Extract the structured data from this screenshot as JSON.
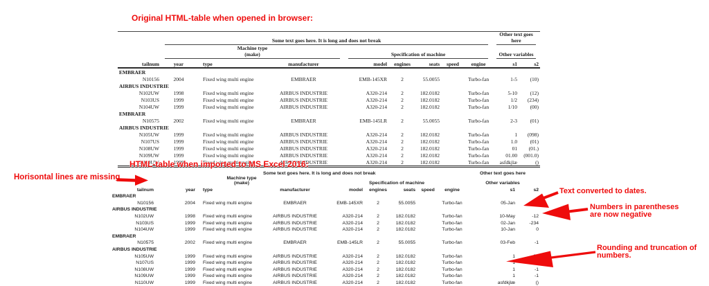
{
  "titles": {
    "browser": "Original HTML-table when opened in browser:",
    "excel": "HTML-table when imported to MS Excel 2016:"
  },
  "annotations": {
    "horizontal_lines": "Horisontal lines are missing",
    "dates": "Text converted to dates.",
    "parentheses": "Numbers in parentheses\nare now negative",
    "rounding": "Rounding and truncation of\nnumbers."
  },
  "header": {
    "row1_main": "Some text goes here. It is long and does not break",
    "row1_other": "Other text goes here",
    "row2_machine": "Machine type\n(make)",
    "row2_spec": "Specification of machine",
    "row2_other": "Other variables",
    "columns": [
      "tailnum",
      "year",
      "type",
      "manufacturer",
      "model",
      "engines",
      "seats",
      "speed",
      "engine",
      "s1",
      "s2"
    ]
  },
  "browser_rows": [
    {
      "group": "EMBRAER"
    },
    {
      "cells": [
        "N10156",
        "2004",
        "Fixed wing multi engine",
        "EMBRAER",
        "EMB-145XR",
        "2",
        "55.0055",
        "",
        "Turbo-fan",
        "1-5",
        "(10)"
      ]
    },
    {
      "group": "AIRBUS INDUSTRIE"
    },
    {
      "cells": [
        "N102UW",
        "1998",
        "Fixed wing multi engine",
        "AIRBUS INDUSTRIE",
        "A320-214",
        "2",
        "182.0182",
        "",
        "Turbo-fan",
        "5-10",
        "(12)"
      ]
    },
    {
      "cells": [
        "N103US",
        "1999",
        "Fixed wing multi engine",
        "AIRBUS INDUSTRIE",
        "A320-214",
        "2",
        "182.0182",
        "",
        "Turbo-fan",
        "1/2",
        "(234)"
      ]
    },
    {
      "cells": [
        "N104UW",
        "1999",
        "Fixed wing multi engine",
        "AIRBUS INDUSTRIE",
        "A320-214",
        "2",
        "182.0182",
        "",
        "Turbo-fan",
        "1/10",
        "(00)"
      ]
    },
    {
      "group": "EMBRAER"
    },
    {
      "cells": [
        "N10575",
        "2002",
        "Fixed wing multi engine",
        "EMBRAER",
        "EMB-145LR",
        "2",
        "55.0055",
        "",
        "Turbo-fan",
        "2-3",
        "(01)"
      ]
    },
    {
      "group": "AIRBUS INDUSTRIE"
    },
    {
      "cells": [
        "N105UW",
        "1999",
        "Fixed wing multi engine",
        "AIRBUS INDUSTRIE",
        "A320-214",
        "2",
        "182.0182",
        "",
        "Turbo-fan",
        "1",
        "(098)"
      ]
    },
    {
      "cells": [
        "N107US",
        "1999",
        "Fixed wing multi engine",
        "AIRBUS INDUSTRIE",
        "A320-214",
        "2",
        "182.0182",
        "",
        "Turbo-fan",
        "1.0",
        "(01)"
      ]
    },
    {
      "cells": [
        "N108UW",
        "1999",
        "Fixed wing multi engine",
        "AIRBUS INDUSTRIE",
        "A320-214",
        "2",
        "182.0182",
        "",
        "Turbo-fan",
        "01",
        "(01.)"
      ]
    },
    {
      "cells": [
        "N109UW",
        "1999",
        "Fixed wing multi engine",
        "AIRBUS INDUSTRIE",
        "A320-214",
        "2",
        "182.0182",
        "",
        "Turbo-fan",
        "01.00",
        "(001.0)"
      ]
    },
    {
      "cells": [
        "N110UW",
        "1999",
        "Fixed wing multi engine",
        "AIRBUS INDUSTRIE",
        "A320-214",
        "2",
        "182.0182",
        "",
        "Turbo-fan",
        "asfdkjlæ",
        "()"
      ]
    }
  ],
  "excel_rows": [
    {
      "group": "EMBRAER"
    },
    {
      "cells": [
        "N10156",
        "2004",
        "Fixed wing multi engine",
        "EMBRAER",
        "EMB-145XR",
        "2",
        "55.0055",
        "",
        "Turbo-fan",
        "05-Jan",
        "-10"
      ]
    },
    {
      "group": "AIRBUS INDUSTRIE"
    },
    {
      "cells": [
        "N102UW",
        "1998",
        "Fixed wing multi engine",
        "AIRBUS INDUSTRIE",
        "A320-214",
        "2",
        "182.0182",
        "",
        "Turbo-fan",
        "10-May",
        "-12"
      ]
    },
    {
      "cells": [
        "N103US",
        "1999",
        "Fixed wing multi engine",
        "AIRBUS INDUSTRIE",
        "A320-214",
        "2",
        "182.0182",
        "",
        "Turbo-fan",
        "02-Jan",
        "-234"
      ]
    },
    {
      "cells": [
        "N104UW",
        "1999",
        "Fixed wing multi engine",
        "AIRBUS INDUSTRIE",
        "A320-214",
        "2",
        "182.0182",
        "",
        "Turbo-fan",
        "10-Jan",
        "0"
      ]
    },
    {
      "group": "EMBRAER"
    },
    {
      "cells": [
        "N10575",
        "2002",
        "Fixed wing multi engine",
        "EMBRAER",
        "EMB-145LR",
        "2",
        "55.0055",
        "",
        "Turbo-fan",
        "03-Feb",
        "-1"
      ]
    },
    {
      "group": "AIRBUS INDUSTRIE"
    },
    {
      "cells": [
        "N105UW",
        "1999",
        "Fixed wing multi engine",
        "AIRBUS INDUSTRIE",
        "A320-214",
        "2",
        "182.0182",
        "",
        "Turbo-fan",
        "1",
        "-98"
      ]
    },
    {
      "cells": [
        "N107US",
        "1999",
        "Fixed wing multi engine",
        "AIRBUS INDUSTRIE",
        "A320-214",
        "2",
        "182.0182",
        "",
        "Turbo-fan",
        "1",
        "-1"
      ]
    },
    {
      "cells": [
        "N108UW",
        "1999",
        "Fixed wing multi engine",
        "AIRBUS INDUSTRIE",
        "A320-214",
        "2",
        "182.0182",
        "",
        "Turbo-fan",
        "1",
        "-1"
      ]
    },
    {
      "cells": [
        "N109UW",
        "1999",
        "Fixed wing multi engine",
        "AIRBUS INDUSTRIE",
        "A320-214",
        "2",
        "182.0182",
        "",
        "Turbo-fan",
        "1",
        "-1"
      ]
    },
    {
      "cells": [
        "N110UW",
        "1999",
        "Fixed wing multi engine",
        "AIRBUS INDUSTRIE",
        "A320-214",
        "2",
        "182.0182",
        "",
        "Turbo-fan",
        "asfdkjlæ",
        "()"
      ]
    }
  ],
  "colors": {
    "annotation_red": "#ee0c0c",
    "table_text": "#1b1b1b",
    "rule_color": "#444444"
  }
}
